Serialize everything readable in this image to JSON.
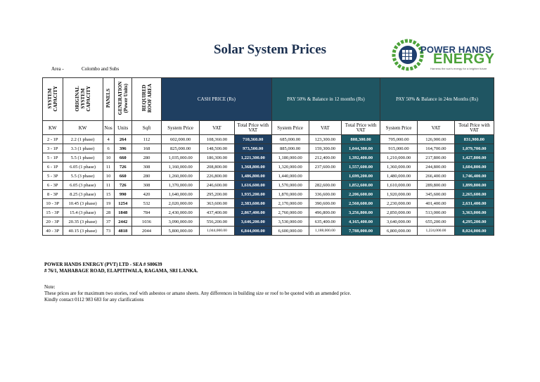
{
  "title": "Solar System Prices",
  "logo": {
    "line1": "POWER HANDS",
    "line2": "ENERGY",
    "tag": "Harness the sun's energy for a brighter future"
  },
  "area": {
    "label": "Area -",
    "value": "Colombo and Subs"
  },
  "headers": {
    "system_capacity": "SYSTEM\nCAPACITY",
    "original_capacity": "ORIGINAL\nSYSTEM\nCAPACITY",
    "panels": "PANELS",
    "generation": "GENERATION\n(Power Units)",
    "roof_area": "REQUIRED\nROOF AREA",
    "cash_price": "CASH PRICE (Rs)",
    "pay12": "PAY 50% & Balance in 12 months (Rs)",
    "pay24": "PAY 50% & Balance in 24m Months (Rs)",
    "units": [
      "KW",
      "KW",
      "Nos",
      "Units",
      "Sqft",
      "System Price",
      "VAT",
      "Total Price with VAT",
      "System Price",
      "VAT",
      "Total Price with VAT",
      "System Price",
      "VAT",
      "Total Price with VAT"
    ]
  },
  "rows": [
    [
      "2 - 1P",
      "2.2 (1 phase)",
      "4",
      "264",
      "112",
      "602,000.00",
      "108,360.00",
      "710,360.00",
      "685,000.00",
      "123,300.00",
      "808,300.00",
      "705,000.00",
      "126,900.00",
      "831,900.00"
    ],
    [
      "3 - 1P",
      "3.3 (1 phase)",
      "6",
      "396",
      "168",
      "825,000.00",
      "148,500.00",
      "973,500.00",
      "885,000.00",
      "159,300.00",
      "1,044,300.00",
      "915,000.00",
      "164,700.00",
      "1,079,700.00"
    ],
    [
      "5 - 1P",
      "5.5 (1 phase)",
      "10",
      "660",
      "280",
      "1,035,000.00",
      "186,300.00",
      "1,221,300.00",
      "1,180,000.00",
      "212,400.00",
      "1,392,400.00",
      "1,210,000.00",
      "217,800.00",
      "1,427,800.00"
    ],
    [
      "6 - 1P",
      "6.05 (1 phase)",
      "11",
      "726",
      "308",
      "1,160,000.00",
      "208,800.00",
      "1,368,800.00",
      "1,320,000.00",
      "237,600.00",
      "1,557,600.00",
      "1,360,000.00",
      "244,800.00",
      "1,604,800.00"
    ],
    [
      "5 - 3P",
      "5.5 (3 phase)",
      "10",
      "660",
      "280",
      "1,260,000.00",
      "226,800.00",
      "1,486,800.00",
      "1,440,000.00",
      "",
      "1,699,200.00",
      "1,480,000.00",
      "266,400.00",
      "1,746,400.00"
    ],
    [
      "6 - 3P",
      "6.05 (3 phase)",
      "11",
      "726",
      "308",
      "1,370,000.00",
      "246,600.00",
      "1,616,600.00",
      "1,570,000.00",
      "282,600.00",
      "1,852,600.00",
      "1,610,000.00",
      "289,800.00",
      "1,899,800.00"
    ],
    [
      "8 - 3P",
      "8.25 (3 phase)",
      "15",
      "990",
      "420",
      "1,640,000.00",
      "295,200.00",
      "1,935,200.00",
      "1,870,000.00",
      "336,600.00",
      "2,206,600.00",
      "1,920,000.00",
      "345,600.00",
      "2,265,600.00"
    ],
    [
      "10 - 3P",
      "10.45 (3 phase)",
      "19",
      "1254",
      "532",
      "2,020,000.00",
      "363,600.00",
      "2,383,600.00",
      "2,170,000.00",
      "390,600.00",
      "2,560,600.00",
      "2,230,000.00",
      "401,400.00",
      "2,631,400.00"
    ],
    [
      "15 - 3P",
      "15.4 (3 phase)",
      "28",
      "1848",
      "784",
      "2,430,000.00",
      "437,400.00",
      "2,867,400.00",
      "2,760,000.00",
      "496,800.00",
      "3,256,800.00",
      "2,850,000.00",
      "513,000.00",
      "3,363,000.00"
    ],
    [
      "20 - 3P",
      "20.35 (3 phase)",
      "37",
      "2442",
      "1036",
      "3,090,000.00",
      "556,200.00",
      "3,646,200.00",
      "3,530,000.00",
      "635,400.00",
      "4,165,400.00",
      "3,640,000.00",
      "655,200.00",
      "4,295,200.00"
    ],
    [
      "40 - 3P",
      "40.15 (3 phase)",
      "73",
      "4818",
      "2044",
      "5,800,000.00",
      "1,044,000.00",
      "6,844,000.00",
      "6,600,000.00",
      "1,188,000.00",
      "7,788,000.00",
      "6,800,000.00",
      "1,224,000.00",
      "8,024,000.00"
    ]
  ],
  "company": {
    "name": "POWER HANDS ENERGY (PVT) LTD - SEA # S00639",
    "address": "# 76/1, MAHABAGE ROAD, ELAPITIWALA, RAGAMA, SRI LANKA."
  },
  "notes": {
    "heading": "Note:",
    "line1": "These prices are for maximum two stories, roof with asbestos or amano sheets. Any differences in building size or roof to be quoted with an amended price.",
    "line2": "Kindly contact 0112 983 683 for any clarifications"
  },
  "colors": {
    "navy": "#1f3f61",
    "teal": "#1d5a67",
    "title": "#1a2f4f",
    "logo_green": "#4ca23a"
  }
}
